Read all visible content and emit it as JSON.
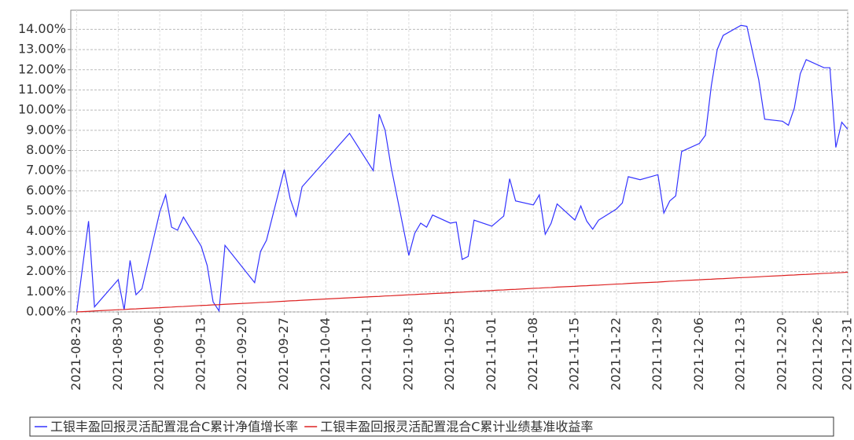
{
  "chart_data": {
    "type": "line",
    "x": [
      "2021-08-23",
      "2021-08-25",
      "2021-08-26",
      "2021-08-30",
      "2021-08-31",
      "2021-09-01",
      "2021-09-02",
      "2021-09-03",
      "2021-09-06",
      "2021-09-07",
      "2021-09-08",
      "2021-09-09",
      "2021-09-10",
      "2021-09-13",
      "2021-09-14",
      "2021-09-15",
      "2021-09-16",
      "2021-09-17",
      "2021-09-22",
      "2021-09-23",
      "2021-09-24",
      "2021-09-27",
      "2021-09-28",
      "2021-09-29",
      "2021-09-30",
      "2021-10-08",
      "2021-10-12",
      "2021-10-13",
      "2021-10-14",
      "2021-10-15",
      "2021-10-18",
      "2021-10-19",
      "2021-10-20",
      "2021-10-21",
      "2021-10-22",
      "2021-10-25",
      "2021-10-26",
      "2021-10-27",
      "2021-10-28",
      "2021-10-29",
      "2021-11-01",
      "2021-11-02",
      "2021-11-03",
      "2021-11-04",
      "2021-11-05",
      "2021-11-08",
      "2021-11-09",
      "2021-11-10",
      "2021-11-11",
      "2021-11-12",
      "2021-11-15",
      "2021-11-16",
      "2021-11-17",
      "2021-11-18",
      "2021-11-19",
      "2021-11-22",
      "2021-11-23",
      "2021-11-24",
      "2021-11-26",
      "2021-11-29",
      "2021-11-30",
      "2021-12-01",
      "2021-12-02",
      "2021-12-03",
      "2021-12-06",
      "2021-12-07",
      "2021-12-08",
      "2021-12-09",
      "2021-12-10",
      "2021-12-13",
      "2021-12-14",
      "2021-12-16",
      "2021-12-17",
      "2021-12-20",
      "2021-12-21",
      "2021-12-22",
      "2021-12-23",
      "2021-12-24",
      "2021-12-27",
      "2021-12-28",
      "2021-12-29",
      "2021-12-30",
      "2021-12-31"
    ],
    "series": [
      {
        "name": "工银丰盈回报灵活配置混合C累计净值增长率",
        "color": "#3333ff",
        "values": [
          0,
          4.5,
          0.25,
          1.6,
          0.1,
          2.55,
          0.85,
          1.15,
          4.95,
          5.8,
          4.2,
          4.05,
          4.7,
          3.25,
          2.3,
          0.5,
          0.05,
          3.3,
          1.45,
          3.0,
          3.55,
          7.05,
          5.6,
          4.75,
          6.2,
          8.85,
          7.0,
          9.8,
          9.0,
          7.2,
          2.8,
          3.9,
          4.4,
          4.2,
          4.8,
          4.4,
          4.45,
          2.6,
          2.75,
          4.55,
          4.25,
          4.5,
          4.75,
          6.6,
          5.5,
          5.3,
          5.8,
          3.85,
          4.4,
          5.35,
          4.55,
          5.25,
          4.5,
          4.1,
          4.55,
          5.1,
          5.4,
          6.7,
          6.55,
          6.8,
          4.9,
          5.5,
          5.75,
          7.95,
          8.35,
          8.75,
          11.2,
          13.0,
          13.7,
          14.2,
          14.15,
          11.5,
          9.55,
          9.45,
          9.25,
          10.1,
          11.8,
          12.5,
          12.1,
          12.1,
          8.15,
          9.4,
          9.05
        ]
      },
      {
        "name": "工银丰盈回报灵活配置混合C累计业绩基准收益率",
        "color": "#dd2222",
        "values": [
          0,
          0.03,
          0.05,
          0.11,
          0.12,
          0.14,
          0.15,
          0.17,
          0.21,
          0.23,
          0.24,
          0.26,
          0.27,
          0.32,
          0.33,
          0.35,
          0.36,
          0.38,
          0.45,
          0.47,
          0.48,
          0.53,
          0.55,
          0.56,
          0.58,
          0.7,
          0.76,
          0.77,
          0.79,
          0.8,
          0.85,
          0.86,
          0.88,
          0.89,
          0.91,
          0.95,
          0.97,
          0.98,
          1.0,
          1.02,
          1.06,
          1.08,
          1.09,
          1.11,
          1.12,
          1.17,
          1.18,
          1.2,
          1.21,
          1.23,
          1.27,
          1.29,
          1.3,
          1.32,
          1.33,
          1.38,
          1.39,
          1.41,
          1.44,
          1.48,
          1.5,
          1.52,
          1.53,
          1.55,
          1.59,
          1.61,
          1.62,
          1.64,
          1.65,
          1.7,
          1.71,
          1.74,
          1.76,
          1.8,
          1.82,
          1.83,
          1.85,
          1.86,
          1.91,
          1.92,
          1.94,
          1.95,
          1.97
        ]
      }
    ],
    "xlim": [
      "2021-08-22",
      "2021-12-31"
    ],
    "xticks": [
      "2021-08-23",
      "2021-08-30",
      "2021-09-06",
      "2021-09-13",
      "2021-09-20",
      "2021-09-27",
      "2021-10-04",
      "2021-10-11",
      "2021-10-18",
      "2021-10-25",
      "2021-11-01",
      "2021-11-08",
      "2021-11-15",
      "2021-11-22",
      "2021-11-29",
      "2021-12-06",
      "2021-12-13",
      "2021-12-20",
      "2021-12-26",
      "2021-12-31"
    ],
    "ylim": [
      0,
      14.95
    ],
    "yticks": [
      {
        "value": 0,
        "label": "0.00%"
      },
      {
        "value": 1,
        "label": "1.00%"
      },
      {
        "value": 2,
        "label": "2.00%"
      },
      {
        "value": 3,
        "label": "3.00%"
      },
      {
        "value": 4,
        "label": "4.00%"
      },
      {
        "value": 5,
        "label": "5.00%"
      },
      {
        "value": 6,
        "label": "6.00%"
      },
      {
        "value": 7,
        "label": "7.00%"
      },
      {
        "value": 8,
        "label": "8.00%"
      },
      {
        "value": 9,
        "label": "9.00%"
      },
      {
        "value": 10,
        "label": "10.00%"
      },
      {
        "value": 11,
        "label": "11.00%"
      },
      {
        "value": 12,
        "label": "12.00%"
      },
      {
        "value": 13,
        "label": "13.00%"
      },
      {
        "value": 14,
        "label": "14.00%"
      }
    ],
    "grid": true
  }
}
